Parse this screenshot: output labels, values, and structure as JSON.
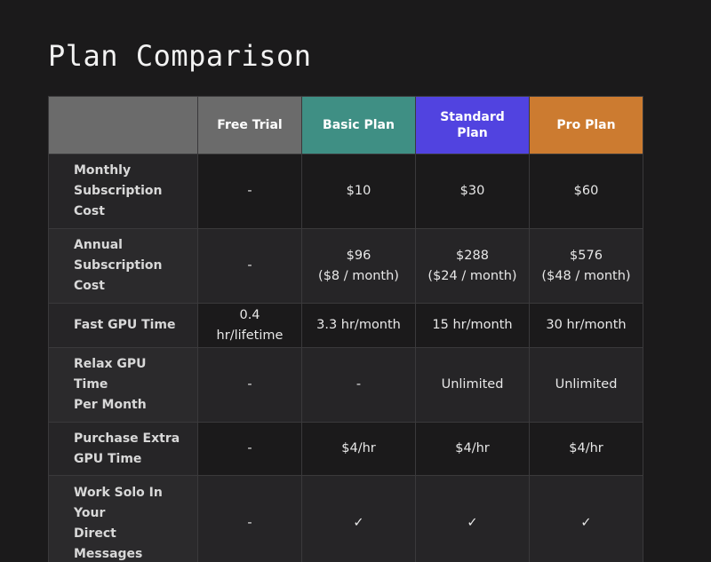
{
  "page": {
    "title": "Plan Comparison"
  },
  "colors": {
    "free_trial": "#6b6b6b",
    "basic_plan": "#3f8f84",
    "standard_plan": "#5143e0",
    "pro_plan": "#cc7b30"
  },
  "plans": [
    {
      "key": "free_trial",
      "label": "Free Trial"
    },
    {
      "key": "basic_plan",
      "label": "Basic Plan"
    },
    {
      "key": "standard_plan",
      "label": "Standard\nPlan"
    },
    {
      "key": "pro_plan",
      "label": "Pro Plan"
    }
  ],
  "rows": [
    {
      "label": "Monthly\nSubscription\nCost",
      "values": [
        "-",
        "$10",
        "$30",
        "$60"
      ]
    },
    {
      "label": "Annual\nSubscription\nCost",
      "values": [
        "-",
        "$96\n($8 / month)",
        "$288\n($24 / month)",
        "$576\n($48 / month)"
      ]
    },
    {
      "label": "Fast GPU Time",
      "values": [
        "0.4\nhr/lifetime",
        "3.3 hr/month",
        "15 hr/month",
        "30 hr/month"
      ]
    },
    {
      "label": "Relax GPU\nTime\nPer Month",
      "values": [
        "-",
        "-",
        "Unlimited",
        "Unlimited"
      ]
    },
    {
      "label": "Purchase Extra\nGPU Time",
      "values": [
        "-",
        "$4/hr",
        "$4/hr",
        "$4/hr"
      ]
    },
    {
      "label": "Work Solo In\nYour\nDirect\nMessages",
      "values": [
        "-",
        "✓",
        "✓",
        "✓"
      ]
    }
  ]
}
